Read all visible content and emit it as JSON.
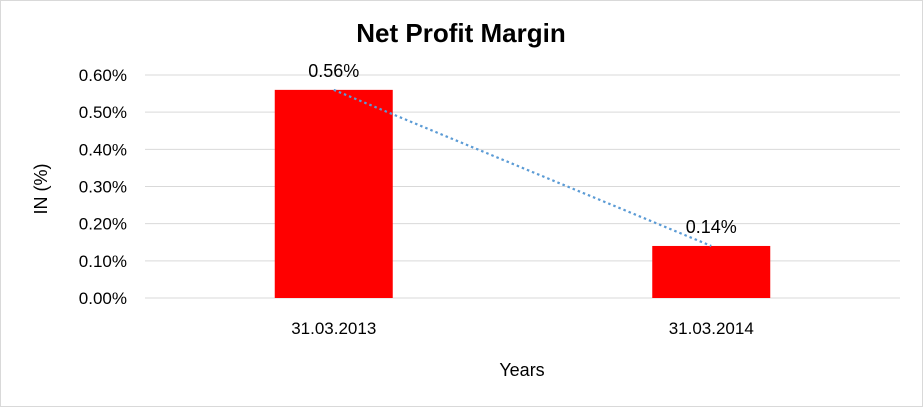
{
  "chart_data": {
    "type": "bar",
    "title": "Net Profit Margin",
    "xlabel": "Years",
    "ylabel": "IN (%)",
    "categories": [
      "31.03.2013",
      "31.03.2014"
    ],
    "values": [
      0.56,
      0.14
    ],
    "data_labels": [
      "0.56%",
      "0.14%"
    ],
    "ylim": [
      0,
      0.6
    ],
    "yticks": [
      0,
      0.1,
      0.2,
      0.3,
      0.4,
      0.5,
      0.6
    ],
    "ytick_labels": [
      "0.00%",
      "0.10%",
      "0.20%",
      "0.30%",
      "0.40%",
      "0.50%",
      "0.60%"
    ],
    "bar_color": "#ff0000",
    "trendline": {
      "type": "linear",
      "style": "dotted",
      "color": "#5b9bd5"
    },
    "grid": true,
    "legend": false
  }
}
